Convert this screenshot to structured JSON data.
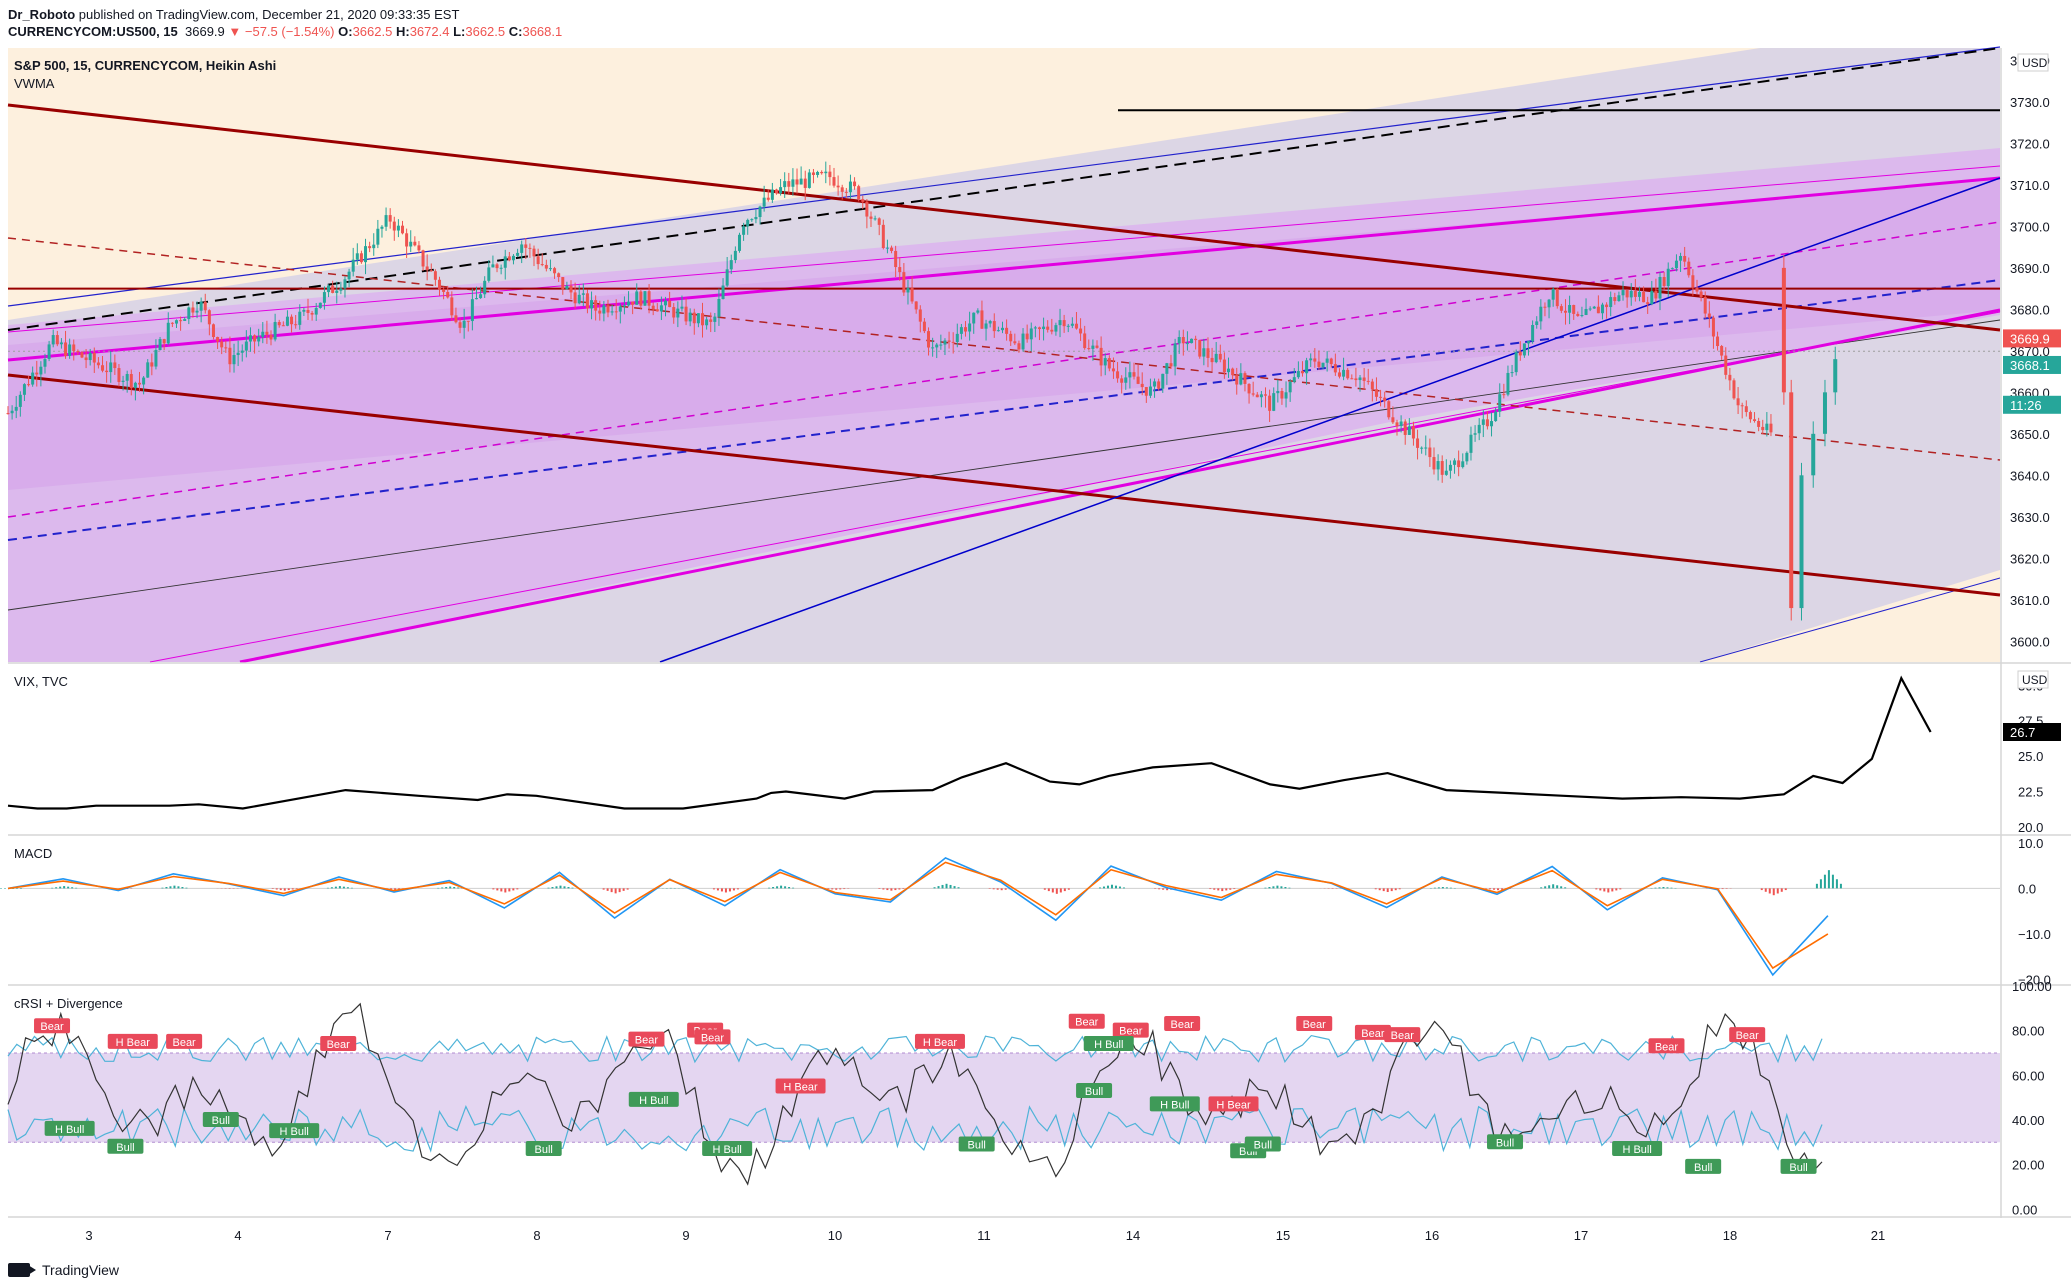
{
  "header": {
    "publisher": "Dr_Roboto",
    "published_text": "published on TradingView.com, December 21, 2020 09:33:35 EST",
    "symbol": "CURRENCYCOM:US500, 15",
    "last": "3669.9",
    "change": "▼ −57.5 (−1.54%)",
    "o_label": "O:",
    "o_value": "3662.5",
    "h_label": "H:",
    "h_value": "3672.4",
    "l_label": "L:",
    "l_value": "3662.5",
    "c_label": "C:",
    "c_value": "3668.1"
  },
  "main_pane": {
    "title": "S&P 500, 15, CURRENCYCOM, Heikin Ashi",
    "subtitle": "VWMA",
    "currency": "USD",
    "last_price_label": "3669.9",
    "close_label": "3668.1",
    "countdown_label": "11:26"
  },
  "vix_pane": {
    "title": "VIX, TVC",
    "currency": "USD",
    "last_label": "26.7"
  },
  "macd_pane": {
    "title": "MACD"
  },
  "crsi_pane": {
    "title": "cRSI + Divergence"
  },
  "footer": {
    "brand": "TradingView"
  },
  "colors": {
    "up": "#26a69a",
    "down": "#ef5350",
    "downtrend": "#990000",
    "magenta": "#e100e1",
    "blue": "#0000dd",
    "macd": "#2196f3",
    "signal": "#ff6d00",
    "crsi": "#333333",
    "band": "#4fb3d8"
  },
  "chart_data": [
    {
      "type": "candlestick",
      "title": "S&P 500, 15, CURRENCYCOM, Heikin Ashi",
      "x_ticks": [
        "3",
        "4",
        "7",
        "8",
        "9",
        "10",
        "11",
        "14",
        "15",
        "16",
        "17",
        "18",
        "21"
      ],
      "y_ticks": [
        "3740.0",
        "3730.0",
        "3720.0",
        "3710.0",
        "3700.0",
        "3690.0",
        "3680.0",
        "3670.0",
        "3660.0",
        "3650.0",
        "3640.0",
        "3630.0",
        "3620.0",
        "3610.0",
        "3600.0"
      ],
      "ylim": [
        3595,
        3743
      ],
      "path_x_range": [
        0,
        13.3
      ],
      "price_path": [
        [
          0,
          3655
        ],
        [
          0.3,
          3672
        ],
        [
          0.6,
          3667
        ],
        [
          0.9,
          3662
        ],
        [
          1.1,
          3676
        ],
        [
          1.3,
          3682
        ],
        [
          1.5,
          3668
        ],
        [
          1.7,
          3673
        ],
        [
          2.0,
          3678
        ],
        [
          2.3,
          3688
        ],
        [
          2.6,
          3702
        ],
        [
          2.9,
          3688
        ],
        [
          3.1,
          3676
        ],
        [
          3.3,
          3690
        ],
        [
          3.5,
          3696
        ],
        [
          3.8,
          3685
        ],
        [
          4.0,
          3680
        ],
        [
          4.3,
          3683
        ],
        [
          4.5,
          3680
        ],
        [
          4.8,
          3676
        ],
        [
          5.0,
          3701
        ],
        [
          5.3,
          3710
        ],
        [
          5.6,
          3712
        ],
        [
          5.8,
          3708
        ],
        [
          6.0,
          3694
        ],
        [
          6.3,
          3670
        ],
        [
          6.6,
          3678
        ],
        [
          6.9,
          3672
        ],
        [
          7.2,
          3678
        ],
        [
          7.5,
          3666
        ],
        [
          7.8,
          3660
        ],
        [
          8.0,
          3673
        ],
        [
          8.3,
          3666
        ],
        [
          8.6,
          3657
        ],
        [
          8.9,
          3668
        ],
        [
          9.2,
          3664
        ],
        [
          9.5,
          3652
        ],
        [
          9.8,
          3640
        ],
        [
          10.1,
          3654
        ],
        [
          10.3,
          3670
        ],
        [
          10.5,
          3684
        ],
        [
          10.7,
          3677
        ],
        [
          11.0,
          3684
        ],
        [
          11.2,
          3683
        ],
        [
          11.4,
          3694
        ],
        [
          11.6,
          3676
        ],
        [
          11.8,
          3656
        ],
        [
          12.0,
          3650
        ]
      ],
      "horizontal_levels": [
        3685,
        3728
      ],
      "hline_color": "#990000",
      "last_price": 3669.9,
      "close": 3668.1,
      "countdown": "11:26"
    },
    {
      "type": "line",
      "title": "VIX, TVC",
      "y_ticks": [
        "30.0",
        "27.5",
        "25.0",
        "22.5",
        "20.0"
      ],
      "ylim": [
        19.5,
        31.5
      ],
      "x": [
        0,
        0.2,
        0.4,
        0.6,
        1.1,
        1.3,
        1.6,
        2.3,
        2.8,
        3.2,
        3.4,
        3.6,
        4.2,
        4.6,
        5.1,
        5.2,
        5.3,
        5.7,
        5.9,
        6.3,
        6.5,
        6.8,
        7.1,
        7.3,
        7.5,
        7.8,
        8.2,
        8.6,
        8.8,
        9.1,
        9.4,
        9.8,
        10.2,
        10.6,
        11.0,
        11.4,
        11.8,
        12.1,
        12.3,
        12.5,
        12.7,
        12.9,
        13.1
      ],
      "y": [
        21.5,
        21.3,
        21.3,
        21.5,
        21.5,
        21.6,
        21.3,
        22.6,
        22.2,
        21.9,
        22.3,
        22.2,
        21.3,
        21.3,
        22.0,
        22.4,
        22.5,
        22.0,
        22.5,
        22.6,
        23.5,
        24.5,
        23.2,
        23.0,
        23.6,
        24.2,
        24.5,
        23.0,
        22.7,
        23.3,
        23.8,
        22.6,
        22.4,
        22.2,
        22.0,
        22.1,
        22.0,
        22.3,
        23.6,
        23.1,
        24.8,
        30.5,
        26.7
      ],
      "last": 26.7
    },
    {
      "type": "line",
      "title": "MACD",
      "y_ticks": [
        "10.0",
        "0.0",
        "−10.0",
        "−20.0"
      ],
      "ylim": [
        -21,
        11.5
      ],
      "series": [
        {
          "values": [
            0,
            2.1,
            -0.5,
            3.2,
            1.0,
            -1.6,
            2.5,
            -0.8,
            1.7,
            -4.3,
            3.5,
            -6.5,
            2.0,
            -3.8,
            4.1,
            -1.2,
            -3.0,
            6.7,
            1.4,
            -7.0,
            4.9,
            0.2,
            -2.6,
            3.7,
            1.1,
            -4.2,
            2.5,
            -1.3,
            4.8,
            -4.7,
            2.3,
            -0.3,
            -19.0,
            -6.0
          ]
        },
        {
          "values": [
            0,
            1.6,
            -0.2,
            2.6,
            1.1,
            -1.1,
            2.0,
            -0.5,
            1.3,
            -3.4,
            2.9,
            -5.4,
            1.9,
            -2.9,
            3.5,
            -0.9,
            -2.5,
            5.7,
            1.8,
            -5.8,
            4.1,
            0.6,
            -2.0,
            3.1,
            1.2,
            -3.4,
            2.2,
            -0.9,
            3.9,
            -3.8,
            2.0,
            -0.1,
            -17.5,
            -10.0
          ]
        }
      ]
    },
    {
      "type": "line",
      "title": "cRSI + Divergence",
      "y_ticks": [
        "100.00",
        "80.00",
        "60.00",
        "40.00",
        "20.00",
        "0.00"
      ],
      "ylim": [
        -3,
        100
      ],
      "band": [
        30,
        70
      ],
      "labels": [
        {
          "text": "Bear",
          "x": 0.3,
          "y": 82,
          "kind": "bear"
        },
        {
          "text": "H Bear",
          "x": 0.85,
          "y": 75,
          "kind": "bear"
        },
        {
          "text": "Bear",
          "x": 1.2,
          "y": 75,
          "kind": "bear"
        },
        {
          "text": "Bear",
          "x": 2.25,
          "y": 74,
          "kind": "bear"
        },
        {
          "text": "Bear",
          "x": 4.35,
          "y": 76,
          "kind": "bear"
        },
        {
          "text": "Bear",
          "x": 4.75,
          "y": 80,
          "kind": "bear"
        },
        {
          "text": "Bear",
          "x": 4.8,
          "y": 77,
          "kind": "bear"
        },
        {
          "text": "H Bear",
          "x": 5.4,
          "y": 55,
          "kind": "bear"
        },
        {
          "text": "H Bear",
          "x": 6.35,
          "y": 75,
          "kind": "bear"
        },
        {
          "text": "Bear",
          "x": 7.35,
          "y": 84,
          "kind": "bear"
        },
        {
          "text": "Bear",
          "x": 7.65,
          "y": 80,
          "kind": "bear"
        },
        {
          "text": "Bear",
          "x": 8.0,
          "y": 83,
          "kind": "bear"
        },
        {
          "text": "H Bear",
          "x": 8.35,
          "y": 47,
          "kind": "bear"
        },
        {
          "text": "Bear",
          "x": 8.9,
          "y": 83,
          "kind": "bear"
        },
        {
          "text": "Bear",
          "x": 9.3,
          "y": 79,
          "kind": "bear"
        },
        {
          "text": "Bear",
          "x": 9.5,
          "y": 78,
          "kind": "bear"
        },
        {
          "text": "Bear",
          "x": 11.3,
          "y": 73,
          "kind": "bear"
        },
        {
          "text": "Bear",
          "x": 11.85,
          "y": 78,
          "kind": "bear"
        },
        {
          "text": "H Bull",
          "x": 0.42,
          "y": 36,
          "kind": "bull"
        },
        {
          "text": "Bull",
          "x": 0.8,
          "y": 28,
          "kind": "bull"
        },
        {
          "text": "Bull",
          "x": 1.45,
          "y": 40,
          "kind": "bull"
        },
        {
          "text": "H Bull",
          "x": 1.95,
          "y": 35,
          "kind": "bull"
        },
        {
          "text": "Bull",
          "x": 3.65,
          "y": 27,
          "kind": "bull"
        },
        {
          "text": "H Bull",
          "x": 4.4,
          "y": 49,
          "kind": "bull"
        },
        {
          "text": "H Bull",
          "x": 4.9,
          "y": 27,
          "kind": "bull"
        },
        {
          "text": "Bull",
          "x": 6.6,
          "y": 29,
          "kind": "bull"
        },
        {
          "text": "H Bull",
          "x": 7.5,
          "y": 74,
          "kind": "bull"
        },
        {
          "text": "Bull",
          "x": 7.4,
          "y": 53,
          "kind": "bull"
        },
        {
          "text": "H Bull",
          "x": 7.95,
          "y": 47,
          "kind": "bull"
        },
        {
          "text": "Bull",
          "x": 8.45,
          "y": 26,
          "kind": "bull"
        },
        {
          "text": "Bull",
          "x": 8.55,
          "y": 29,
          "kind": "bull"
        },
        {
          "text": "Bull",
          "x": 10.2,
          "y": 30,
          "kind": "bull"
        },
        {
          "text": "H Bull",
          "x": 11.1,
          "y": 27,
          "kind": "bull"
        },
        {
          "text": "Bull",
          "x": 11.55,
          "y": 19,
          "kind": "bull"
        },
        {
          "text": "Bull",
          "x": 12.2,
          "y": 19,
          "kind": "bull"
        }
      ]
    }
  ]
}
